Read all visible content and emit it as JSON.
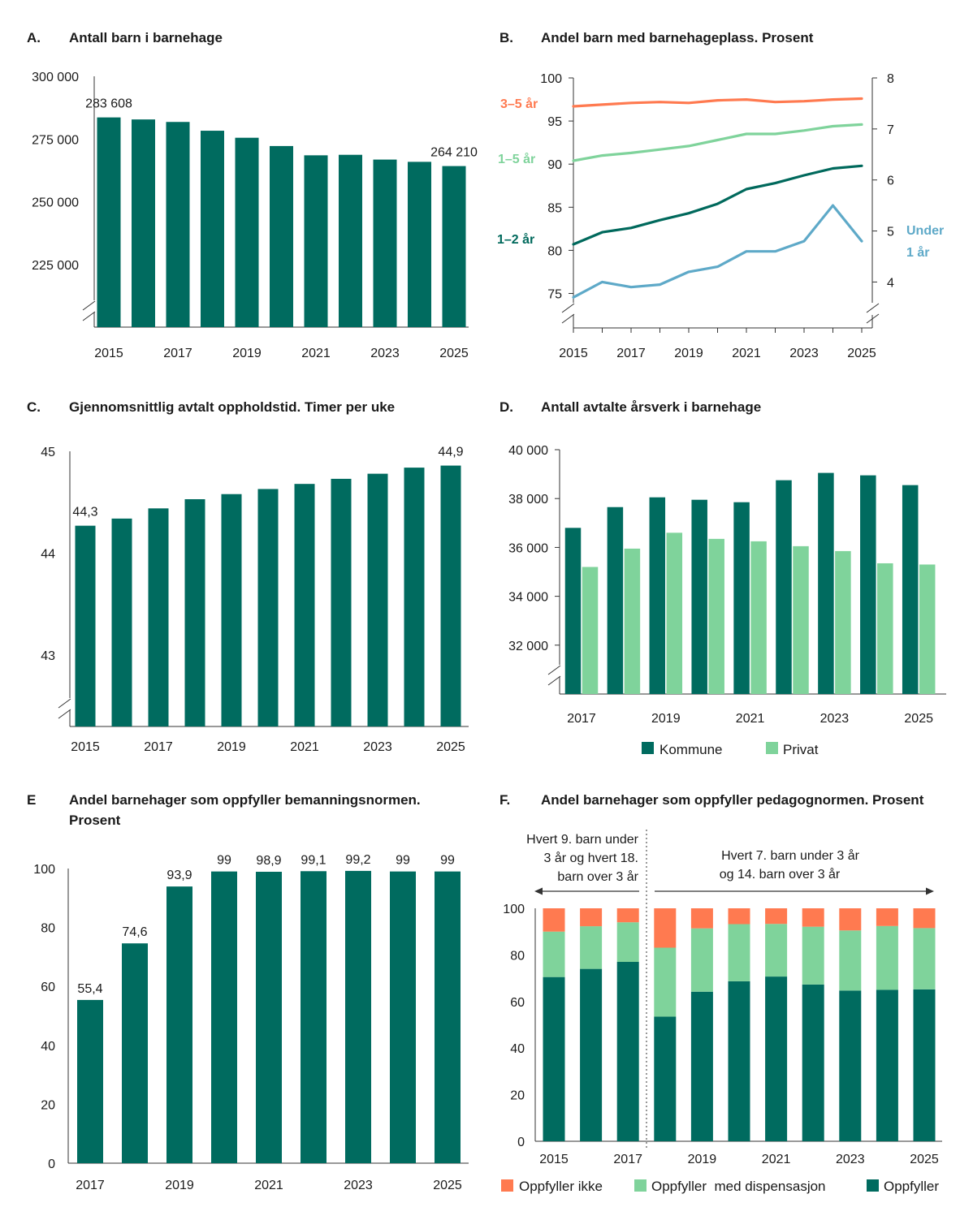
{
  "colors": {
    "dark_green": "#006b5f",
    "teal_green": "#00695c",
    "light_green": "#7fd39b",
    "orange": "#ff7a50",
    "blue": "#5ea9c8",
    "axis": "#333333"
  },
  "chart_data": [
    {
      "id": "A",
      "type": "bar",
      "letter": "A.",
      "title": "Antall barn i barnehage",
      "x": [
        2015,
        2016,
        2017,
        2018,
        2019,
        2020,
        2021,
        2022,
        2023,
        2024,
        2025
      ],
      "x_tick_labels": [
        "2015",
        "2017",
        "2019",
        "2021",
        "2023",
        "2025"
      ],
      "values": [
        283608,
        282800,
        281800,
        278300,
        275500,
        272200,
        268500,
        268700,
        266800,
        265900,
        264210
      ],
      "ylim": [
        200000,
        300000
      ],
      "axis_break": true,
      "y_ticks": [
        225000,
        250000,
        275000,
        300000
      ],
      "y_tick_labels": [
        "225 000",
        "250 000",
        "275 000",
        "300 000"
      ],
      "data_labels": [
        {
          "x": 2015,
          "text": "283 608"
        },
        {
          "x": 2025,
          "text": "264 210"
        }
      ]
    },
    {
      "id": "B",
      "type": "line",
      "letter": "B.",
      "title": "Andel barn med barnehageplass. Prosent",
      "x": [
        2015,
        2016,
        2017,
        2018,
        2019,
        2020,
        2021,
        2022,
        2023,
        2024,
        2025
      ],
      "x_tick_labels": [
        "2015",
        "2017",
        "2019",
        "2021",
        "2023",
        "2025"
      ],
      "ylim_left": [
        71,
        100
      ],
      "y_ticks_left": [
        75,
        80,
        85,
        90,
        95,
        100
      ],
      "ylim_right": [
        3.1,
        8
      ],
      "y_ticks_right": [
        4,
        5,
        6,
        7,
        8
      ],
      "axis_break": true,
      "series": [
        {
          "name": "3–5 år",
          "axis": "left",
          "color": "#ff7a50",
          "values": [
            96.7,
            96.9,
            97.1,
            97.2,
            97.1,
            97.4,
            97.5,
            97.2,
            97.3,
            97.5,
            97.6
          ]
        },
        {
          "name": "1–5 år",
          "axis": "left",
          "color": "#7fd39b",
          "values": [
            90.4,
            91.0,
            91.3,
            91.7,
            92.1,
            92.8,
            93.5,
            93.5,
            93.9,
            94.4,
            94.6
          ]
        },
        {
          "name": "1–2 år",
          "axis": "left",
          "color": "#00695c",
          "values": [
            80.7,
            82.1,
            82.6,
            83.5,
            84.3,
            85.4,
            87.1,
            87.8,
            88.7,
            89.5,
            89.8
          ]
        },
        {
          "name": "Under 1 år",
          "axis": "right",
          "color": "#5ea9c8",
          "values": [
            3.7,
            4.0,
            3.9,
            3.95,
            4.2,
            4.3,
            4.6,
            4.6,
            4.8,
            5.5,
            4.8
          ]
        }
      ],
      "series_label_lines": {
        "under1_line1": "Under",
        "under1_line2": "1 år"
      }
    },
    {
      "id": "C",
      "type": "bar",
      "letter": "C.",
      "title": "Gjennomsnittlig avtalt oppholdstid. Timer per uke",
      "x": [
        2015,
        2016,
        2017,
        2018,
        2019,
        2020,
        2021,
        2022,
        2023,
        2024,
        2025
      ],
      "x_tick_labels": [
        "2015",
        "2017",
        "2019",
        "2021",
        "2023",
        "2025"
      ],
      "values": [
        44.27,
        44.34,
        44.44,
        44.53,
        44.58,
        44.63,
        44.68,
        44.73,
        44.78,
        44.84,
        44.86
      ],
      "ylim": [
        42.3,
        45.0
      ],
      "axis_break": true,
      "y_ticks": [
        43,
        44,
        45
      ],
      "y_tick_labels": [
        "43",
        "44",
        "45"
      ],
      "data_labels": [
        {
          "x": 2015,
          "text": "44,3"
        },
        {
          "x": 2025,
          "text": "44,9"
        }
      ]
    },
    {
      "id": "D",
      "type": "bar",
      "letter": "D.",
      "title": "Antall avtalte årsverk i barnehage",
      "x": [
        2017,
        2018,
        2019,
        2020,
        2021,
        2022,
        2023,
        2024,
        2025
      ],
      "x_tick_labels": [
        "2017",
        "2019",
        "2021",
        "2023",
        "2025"
      ],
      "series": [
        {
          "name": "Kommune",
          "color": "#006b5f",
          "values": [
            36800,
            37650,
            38050,
            37950,
            37850,
            38750,
            39050,
            38950,
            38550
          ]
        },
        {
          "name": "Privat",
          "color": "#7fd39b",
          "values": [
            35200,
            35950,
            36600,
            36350,
            36250,
            36050,
            35850,
            35350,
            35300
          ]
        }
      ],
      "ylim": [
        30000,
        40000
      ],
      "axis_break": true,
      "y_ticks": [
        32000,
        34000,
        36000,
        38000,
        40000
      ],
      "y_tick_labels": [
        "32 000",
        "34 000",
        "36 000",
        "38 000",
        "40 000"
      ],
      "legend": [
        "Kommune",
        "Privat"
      ],
      "legend_position": "bottom"
    },
    {
      "id": "E",
      "type": "bar",
      "letter": "E",
      "title_line1": "Andel barnehager som oppfyller bemanningsnormen.",
      "title_line2": "Prosent",
      "x": [
        2017,
        2018,
        2019,
        2020,
        2021,
        2022,
        2023,
        2024,
        2025
      ],
      "x_tick_labels": [
        "2017",
        "2019",
        "2021",
        "2023",
        "2025"
      ],
      "values": [
        55.4,
        74.6,
        93.9,
        99,
        98.9,
        99.1,
        99.2,
        99,
        99
      ],
      "value_labels": [
        "55,4",
        "74,6",
        "93,9",
        "99",
        "98,9",
        "99,1",
        "99,2",
        "99",
        "99"
      ],
      "ylim": [
        0,
        100
      ],
      "y_ticks": [
        0,
        20,
        40,
        60,
        80,
        100
      ],
      "y_tick_labels": [
        "0",
        "20",
        "40",
        "60",
        "80",
        "100"
      ]
    },
    {
      "id": "F",
      "type": "bar",
      "stacked": true,
      "letter": "F.",
      "title": "Andel barnehager som oppfyller pedagognormen. Prosent",
      "x": [
        2015,
        2016,
        2017,
        2018,
        2019,
        2020,
        2021,
        2022,
        2023,
        2024,
        2025
      ],
      "x_tick_labels": [
        "2015",
        "2017",
        "2019",
        "2021",
        "2023",
        "2025"
      ],
      "series": [
        {
          "name": "Oppfyller",
          "color": "#006b5f",
          "values": [
            70.5,
            74.0,
            77.0,
            53.5,
            64.2,
            68.7,
            70.7,
            67.3,
            64.7,
            65.0,
            65.2
          ]
        },
        {
          "name": "Oppfyller  med dispensasjon",
          "color": "#7fd39b",
          "values": [
            19.5,
            18.3,
            17.0,
            29.6,
            27.2,
            24.5,
            22.6,
            24.8,
            25.8,
            27.4,
            26.3
          ]
        },
        {
          "name": "Oppfyller ikke",
          "color": "#ff7a50",
          "values": [
            10.0,
            7.7,
            6.0,
            16.9,
            8.6,
            6.8,
            6.7,
            7.9,
            9.5,
            7.6,
            8.5
          ]
        }
      ],
      "ylim": [
        0,
        100
      ],
      "y_ticks": [
        0,
        20,
        40,
        60,
        80,
        100
      ],
      "y_tick_labels": [
        "0",
        "20",
        "40",
        "60",
        "80",
        "100"
      ],
      "annotations": {
        "left": [
          "Hvert 9. barn under",
          "3 år og hvert 18.",
          "barn over 3 år"
        ],
        "right": [
          "Hvert 7. barn under 3 år",
          "og 14. barn over 3 år"
        ]
      },
      "legend": [
        "Oppfyller ikke",
        "Oppfyller  med dispensasjon",
        "Oppfyller"
      ],
      "legend_position": "bottom"
    }
  ]
}
